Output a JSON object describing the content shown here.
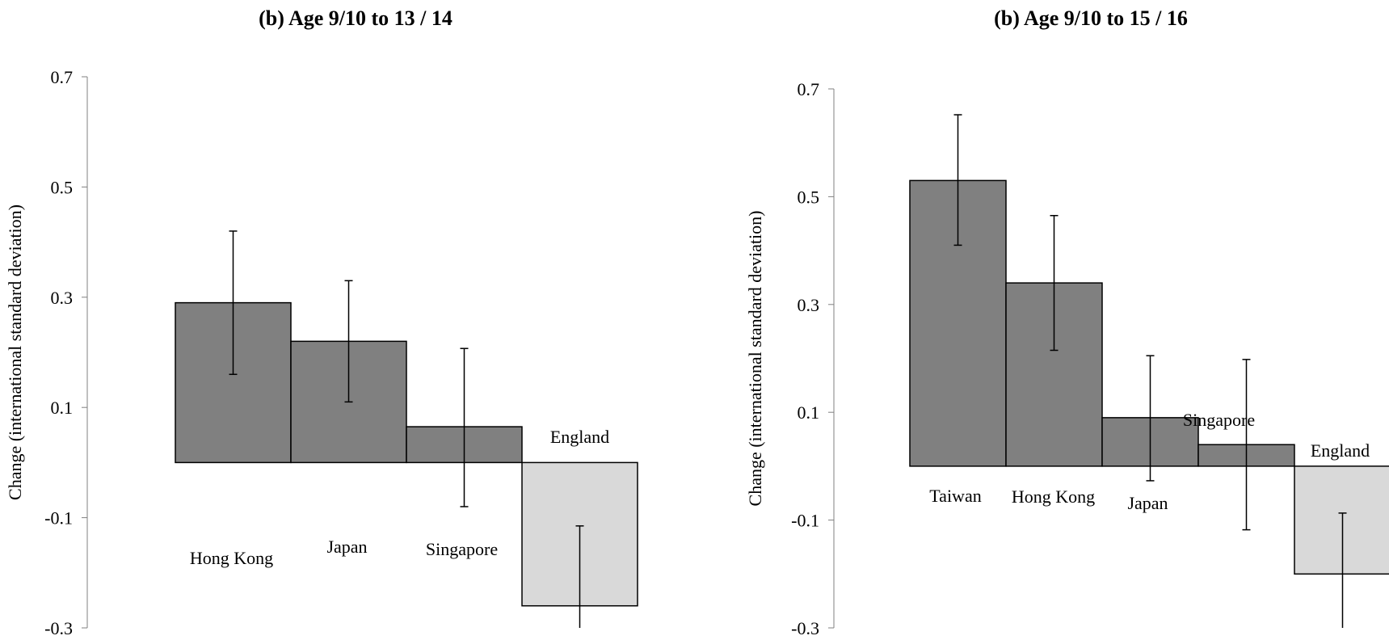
{
  "chart_data": [
    {
      "type": "bar",
      "title": "(b) Age 9/10 to 13 / 14",
      "ylabel": "Change (international standard deviation)",
      "ylim": [
        -0.3,
        0.7
      ],
      "yticks": [
        "0.7",
        "0.5",
        "0.3",
        "0.1",
        "-0.1",
        "-0.3"
      ],
      "grid": false,
      "categories": [
        "Hong Kong",
        "Japan",
        "Singapore",
        "England"
      ],
      "values": [
        0.29,
        0.22,
        0.065,
        -0.26
      ],
      "error_low": [
        0.16,
        0.11,
        -0.08,
        -0.3
      ],
      "error_high": [
        0.42,
        0.33,
        0.207,
        -0.115
      ],
      "bar_colors": [
        "#808080",
        "#808080",
        "#808080",
        "#d9d9d9"
      ]
    },
    {
      "type": "bar",
      "title": "(b) Age 9/10 to 15 / 16",
      "ylabel": "Change (international standard deviation)",
      "ylim": [
        -0.3,
        0.7
      ],
      "yticks": [
        "0.7",
        "0.5",
        "0.3",
        "0.1",
        "-0.1",
        "-0.3"
      ],
      "grid": false,
      "categories": [
        "Taiwan",
        "Hong Kong",
        "Japan",
        "Singapore",
        "England"
      ],
      "values": [
        0.53,
        0.34,
        0.09,
        0.04,
        -0.2
      ],
      "error_low": [
        0.41,
        0.215,
        -0.027,
        -0.118,
        -0.3
      ],
      "error_high": [
        0.652,
        0.465,
        0.205,
        0.198,
        -0.087
      ],
      "bar_colors": [
        "#808080",
        "#808080",
        "#808080",
        "#808080",
        "#d9d9d9"
      ]
    }
  ]
}
